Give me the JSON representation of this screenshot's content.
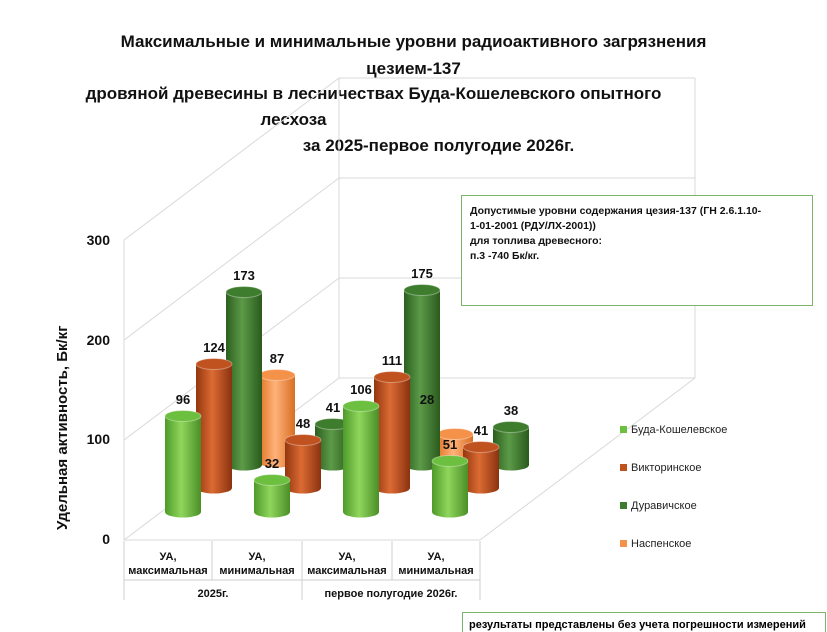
{
  "chart_data": {
    "type": "bar",
    "title_lines": [
      "Максимальные и минимальные уровни радиоактивного загрязнения",
      "цезием-137",
      "дровяной древесины в лесничествах Буда-Кошелевского опытного",
      "лесхоза",
      "за 2025-первое полугодие 2026г."
    ],
    "ylabel": "Удельная активность, Бк/кг",
    "ylim": [
      0,
      300
    ],
    "yticks": [
      "0",
      "100",
      "200",
      "300"
    ],
    "groups": [
      {
        "label": "2025г.",
        "categories": [
          "УА, максимальная",
          "УА, минимальная"
        ]
      },
      {
        "label": "первое полугодие 2026г.",
        "categories": [
          "УА, максимальная",
          "УА, минимальная"
        ]
      }
    ],
    "categories": [
      "УА, максимальная",
      "УА, минимальная",
      "УА, максимальная",
      "УА, минимальная"
    ],
    "series": [
      {
        "name": "Буда-Кошелевское",
        "color": "#6dbf3f",
        "values": [
          96,
          32,
          106,
          51
        ]
      },
      {
        "name": "Викторинское",
        "color": "#c0521f",
        "values": [
          124,
          48,
          111,
          41
        ]
      },
      {
        "name": "Дуравичское",
        "color": "#3f7d2e",
        "values": [
          173,
          41,
          175,
          38
        ]
      },
      {
        "name": "Наспенское",
        "color": "#f5924a",
        "values": [
          87,
          null,
          28,
          null
        ]
      }
    ],
    "grid": true,
    "legend_position": "right"
  },
  "note": {
    "lines": [
      "Допустимые уровни содержания цезия-137 (ГН 2.6.1.10-",
      "1-01-2001 (РДУ/ЛХ-2001))",
      "для топлива древесного:",
      "п.3 -740 Бк/кг."
    ]
  },
  "footnote": "результаты представлены без учета погрешности измерений"
}
